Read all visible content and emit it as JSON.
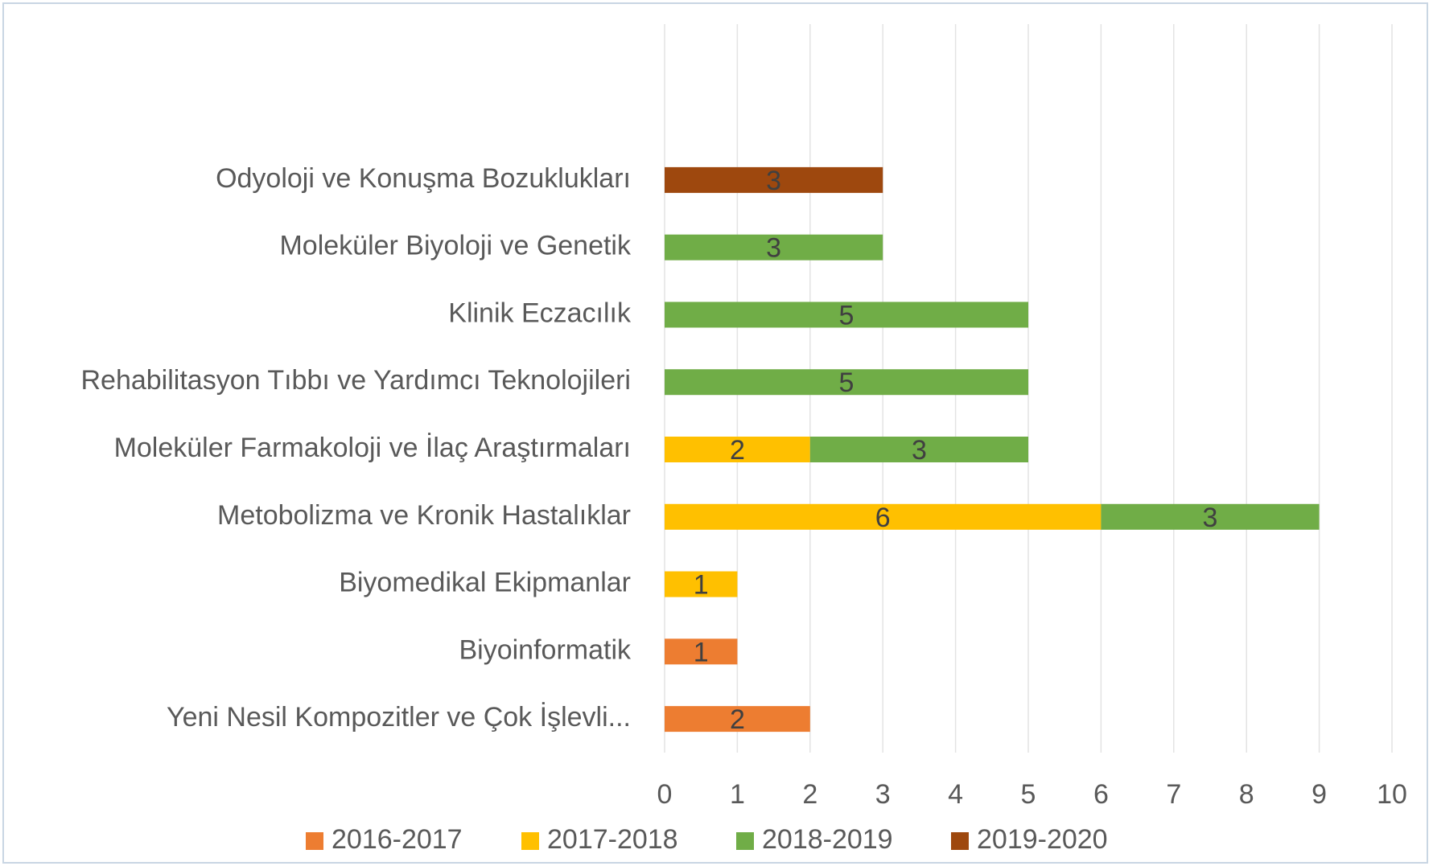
{
  "chart_data": {
    "type": "stacked_bar_horizontal",
    "categories": [
      "Odyoloji ve Konuşma Bozuklukları",
      "Moleküler Biyoloji ve Genetik",
      "Klinik Eczacılık",
      "Rehabilitasyon Tıbbı ve Yardımcı Teknolojileri",
      "Moleküler Farmakoloji ve İlaç Araştırmaları",
      "Metobolizma ve Kronik Hastalıklar",
      "Biyomedikal Ekipmanlar",
      "Biyoinformatik",
      "Yeni Nesil Kompozitler ve Çok İşlevli..."
    ],
    "series": [
      {
        "name": "2016-2017",
        "color": "#ed7d31",
        "values": [
          null,
          null,
          null,
          null,
          null,
          null,
          null,
          1,
          2
        ]
      },
      {
        "name": "2017-2018",
        "color": "#ffc000",
        "values": [
          null,
          null,
          null,
          null,
          2,
          6,
          1,
          null,
          null
        ]
      },
      {
        "name": "2018-2019",
        "color": "#70ad47",
        "values": [
          null,
          3,
          5,
          5,
          3,
          3,
          null,
          null,
          null
        ]
      },
      {
        "name": "2019-2020",
        "color": "#9e480e",
        "values": [
          3,
          null,
          null,
          null,
          null,
          null,
          null,
          null,
          null
        ]
      }
    ],
    "xlim": [
      0,
      10
    ],
    "xticks": [
      0,
      1,
      2,
      3,
      4,
      5,
      6,
      7,
      8,
      9,
      10
    ],
    "grid": true,
    "legend": "bottom"
  }
}
